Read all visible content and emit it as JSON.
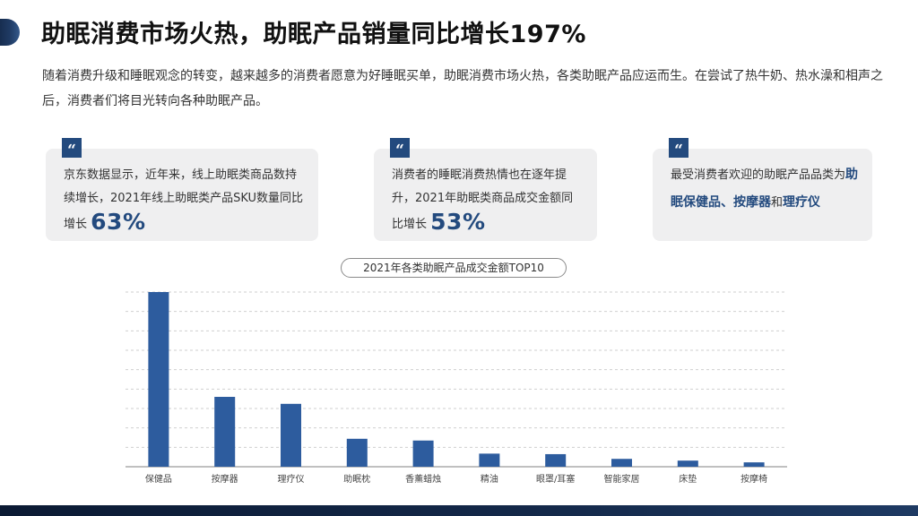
{
  "page": {
    "title": "助眠消费市场火热，助眠产品销量同比增长197%",
    "intro": "随着消费升级和睡眠观念的转变，越来越多的消费者愿意为好睡眠买单，助眠消费市场火热，各类助眠产品应运而生。在尝试了热牛奶、热水澡和相声之后，消费者们将目光转向各种助眠产品。"
  },
  "cards": [
    {
      "text": "京东数据显示，近年来，线上助眠类商品数持续增长，2021年线上助眠类产品SKU数量同比增长",
      "value": "63%"
    },
    {
      "text": "消费者的睡眠消费热情也在逐年提升，2021年助眠类商品成交金额同比增长",
      "value": "53%"
    },
    {
      "text_prefix": "最受消费者欢迎的助眠产品品类为",
      "hl1": "助眠保健品",
      "sep": "、",
      "hl2": "按摩器",
      "mid": "和",
      "hl3": "理疗仪"
    }
  ],
  "colors": {
    "accent": "#234a7e",
    "bar": "#2d5c9e",
    "card_bg": "#efeff0",
    "footer": "#0b1a33"
  },
  "chart_data": {
    "type": "bar",
    "title": "2021年各类助眠产品成交金额TOP10",
    "categories": [
      "保健品",
      "按摩器",
      "理疗仪",
      "助眠枕",
      "香薰蜡烛",
      "精油",
      "眼罩/耳塞",
      "智能家居",
      "床垫",
      "按摩椅"
    ],
    "values": [
      100,
      40,
      36,
      16,
      15,
      7.5,
      7.2,
      4.5,
      3.5,
      2.5
    ],
    "ylim": [
      0,
      100
    ],
    "grid": true,
    "legend": "none"
  }
}
